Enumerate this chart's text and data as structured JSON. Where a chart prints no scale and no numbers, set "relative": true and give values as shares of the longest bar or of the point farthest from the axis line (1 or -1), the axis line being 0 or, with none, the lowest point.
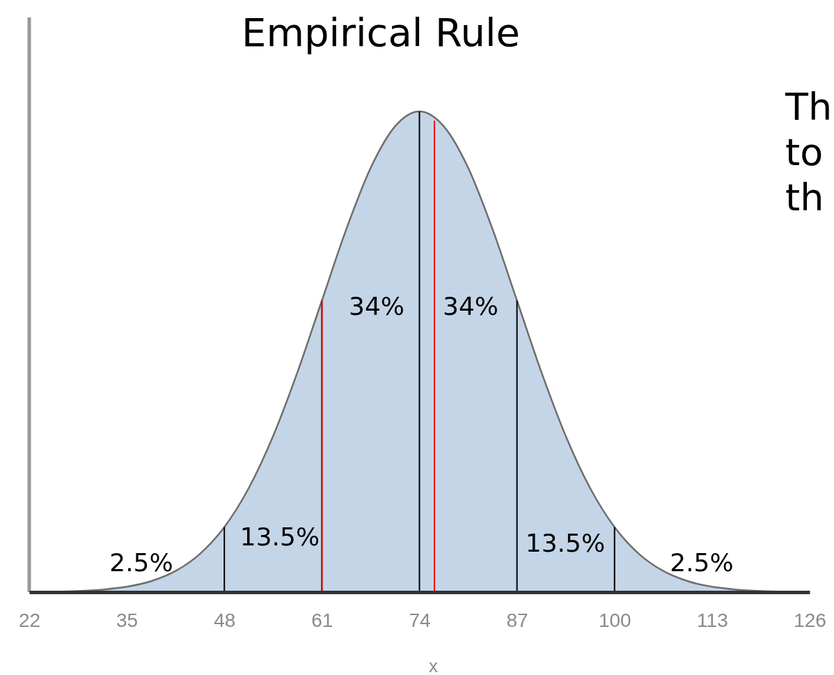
{
  "chart_data": {
    "type": "area",
    "title": "Empirical Rule",
    "xlabel": "x",
    "relative": true,
    "x": [
      22,
      25.25,
      28.5,
      31.75,
      35,
      38.25,
      41.5,
      44.75,
      48,
      51.25,
      54.5,
      57.75,
      61,
      64.25,
      67.5,
      70.75,
      74,
      77.25,
      80.5,
      83.75,
      87,
      90.25,
      93.5,
      96.75,
      100,
      103.25,
      106.5,
      109.75,
      113,
      116.25,
      119.5,
      122.75,
      126
    ],
    "series": [
      {
        "color": "#c5d5e8",
        "values": [
          0.0003,
          0.0009,
          0.0022,
          0.0051,
          0.0111,
          0.0228,
          0.0439,
          0.0796,
          0.1353,
          0.2163,
          0.3247,
          0.4578,
          0.6065,
          0.7548,
          0.8825,
          0.969,
          1,
          0.969,
          0.8825,
          0.7548,
          0.6065,
          0.4578,
          0.3247,
          0.2163,
          0.1353,
          0.0796,
          0.0439,
          0.0228,
          0.0111,
          0.0051,
          0.0022,
          0.0009,
          0.0003
        ]
      }
    ],
    "xlim": [
      22,
      126
    ],
    "xticks": [
      22,
      35,
      48,
      61,
      74,
      87,
      100,
      113,
      126
    ],
    "ref_lines": [
      {
        "axis": "x",
        "value": 48,
        "color": "#000000"
      },
      {
        "axis": "x",
        "value": 61,
        "color": "#000000"
      },
      {
        "axis": "x",
        "value": 74,
        "color": "#000000"
      },
      {
        "axis": "x",
        "value": 87,
        "color": "#000000"
      },
      {
        "axis": "x",
        "value": 100,
        "color": "#000000"
      },
      {
        "axis": "x",
        "value": 61,
        "color": "#ff0000"
      },
      {
        "axis": "x",
        "value": 76,
        "color": "#ff0000"
      }
    ],
    "annotations": [
      "2.5%",
      "13.5%",
      "34%",
      "34%",
      "13.5%",
      "2.5%",
      "Th",
      "to",
      "th"
    ]
  }
}
